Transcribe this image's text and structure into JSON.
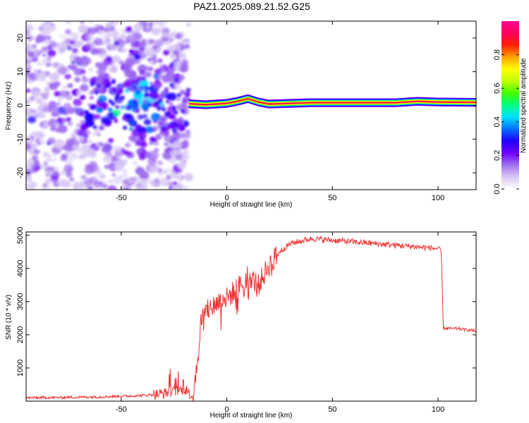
{
  "title": "PAZ1.2025.089.21.52.G25",
  "colors": {
    "snr_line": "#ee3333",
    "spectrum_base": "#ffffff"
  },
  "chart_data": [
    {
      "id": "spectrogram",
      "type": "heatmap",
      "xlabel": "Height of straight line (km)",
      "ylabel": "Frequency (Hz)",
      "xlim": [
        -95,
        118
      ],
      "ylim": [
        -25,
        25
      ],
      "xticks": [
        -50,
        0,
        50,
        100
      ],
      "yticks": [
        -20,
        -10,
        0,
        10,
        20
      ],
      "colorbar": {
        "label": "Normalized spectral amplitude",
        "range": [
          0,
          1
        ],
        "ticks": [
          0.0,
          0.2,
          0.4,
          0.6,
          0.8
        ],
        "colormap": [
          "#ffffff",
          "#d8c8f4",
          "#a070f0",
          "#7000ff",
          "#2000ff",
          "#0070ff",
          "#00e0ff",
          "#00ff80",
          "#40ff00",
          "#c0ff00",
          "#ffff00",
          "#ffa000",
          "#ff2000",
          "#ff0060",
          "#ff0090"
        ]
      },
      "grid": false,
      "description_regions": {
        "noise_region_x": [
          -95,
          -18
        ],
        "signal_band_x": [
          -18,
          118
        ],
        "signal_band_frequency": [
          -1,
          2
        ]
      },
      "signal_ridge": [
        {
          "x": -18,
          "f": 0.5
        },
        {
          "x": -10,
          "f": 0.2
        },
        {
          "x": 0,
          "f": 0.6
        },
        {
          "x": 5,
          "f": 1.2
        },
        {
          "x": 10,
          "f": 2.0
        },
        {
          "x": 15,
          "f": 1.0
        },
        {
          "x": 20,
          "f": 0.4
        },
        {
          "x": 30,
          "f": 0.6
        },
        {
          "x": 40,
          "f": 0.8
        },
        {
          "x": 60,
          "f": 0.8
        },
        {
          "x": 80,
          "f": 0.8
        },
        {
          "x": 90,
          "f": 1.2
        },
        {
          "x": 100,
          "f": 1.0
        },
        {
          "x": 118,
          "f": 0.9
        }
      ]
    },
    {
      "id": "snr",
      "type": "line",
      "xlabel": "Height of straight line (km)",
      "ylabel": "SNR (10 * v/v)",
      "xlim": [
        -95,
        118
      ],
      "ylim": [
        0,
        5100
      ],
      "xticks": [
        -50,
        0,
        50,
        100
      ],
      "yticks": [
        1000,
        2000,
        3000,
        4000,
        5000
      ],
      "grid": false,
      "series": [
        {
          "values_envelope": [
            {
              "x": -95,
              "y": 100
            },
            {
              "x": -80,
              "y": 110
            },
            {
              "x": -60,
              "y": 130
            },
            {
              "x": -40,
              "y": 170
            },
            {
              "x": -30,
              "y": 230
            },
            {
              "x": -25,
              "y": 300
            },
            {
              "x": -20,
              "y": 350
            },
            {
              "x": -16,
              "y": 150
            },
            {
              "x": -14,
              "y": 1200
            },
            {
              "x": -12,
              "y": 2500
            },
            {
              "x": -8,
              "y": 2800
            },
            {
              "x": -4,
              "y": 3000
            },
            {
              "x": 0,
              "y": 3100
            },
            {
              "x": 5,
              "y": 3400
            },
            {
              "x": 10,
              "y": 3800
            },
            {
              "x": 15,
              "y": 3500
            },
            {
              "x": 20,
              "y": 4100
            },
            {
              "x": 25,
              "y": 4500
            },
            {
              "x": 30,
              "y": 4750
            },
            {
              "x": 40,
              "y": 4900
            },
            {
              "x": 50,
              "y": 4850
            },
            {
              "x": 60,
              "y": 4800
            },
            {
              "x": 70,
              "y": 4750
            },
            {
              "x": 80,
              "y": 4700
            },
            {
              "x": 90,
              "y": 4650
            },
            {
              "x": 100,
              "y": 4600
            },
            {
              "x": 101.5,
              "y": 4500
            },
            {
              "x": 102.5,
              "y": 2200
            },
            {
              "x": 110,
              "y": 2180
            },
            {
              "x": 118,
              "y": 2120
            }
          ]
        }
      ]
    }
  ]
}
